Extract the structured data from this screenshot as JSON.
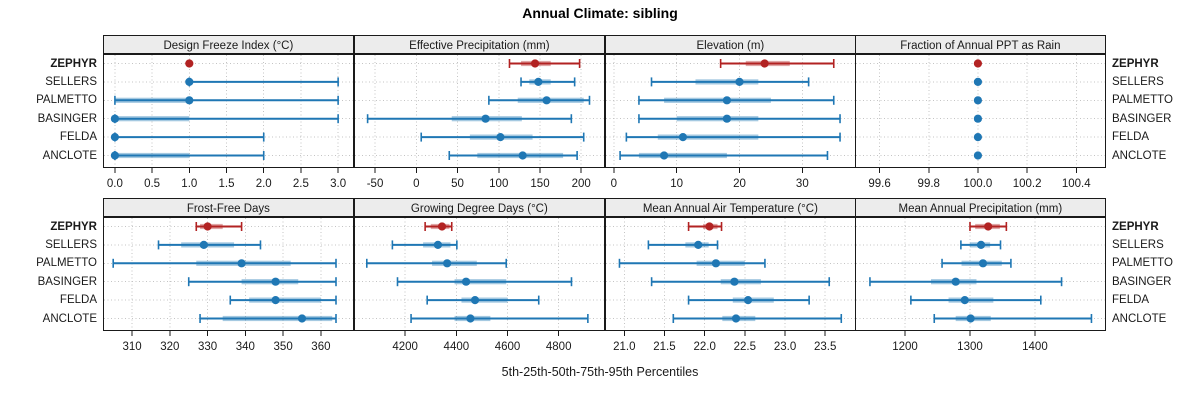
{
  "title": "Annual Climate: sibling",
  "xlabel": "5th-25th-50th-75th-95th Percentiles",
  "colors": {
    "highlight_red": "#b22222",
    "series_blue": "#1f77b4",
    "strip_bg": "#ececec",
    "panel_border": "#1a1a1a",
    "grid": "#c4c4c4"
  },
  "stations": [
    {
      "name": "ZEPHYR",
      "bold": true,
      "color": "#b22222"
    },
    {
      "name": "SELLERS",
      "bold": false,
      "color": "#1f77b4"
    },
    {
      "name": "PALMETTO",
      "bold": false,
      "color": "#1f77b4"
    },
    {
      "name": "BASINGER",
      "bold": false,
      "color": "#1f77b4"
    },
    {
      "name": "FELDA",
      "bold": false,
      "color": "#1f77b4"
    },
    {
      "name": "ANCLOTE",
      "bold": false,
      "color": "#1f77b4"
    }
  ],
  "chart_data": {
    "type": "dotplot-percentiles",
    "title": "Annual Climate: sibling",
    "xlabel": "5th-25th-50th-75th-95th Percentiles",
    "percentile_labels": [
      "5th",
      "25th",
      "50th",
      "75th",
      "95th"
    ],
    "station_order": [
      "ZEPHYR",
      "SELLERS",
      "PALMETTO",
      "BASINGER",
      "FELDA",
      "ANCLOTE"
    ],
    "grid": true,
    "layout": "2 rows x 4 columns",
    "panels": [
      {
        "title": "Design Freeze Index (°C)",
        "xlim": [
          -0.16,
          3.21
        ],
        "tick_values": [
          0.0,
          0.5,
          1.0,
          1.5,
          2.0,
          2.5,
          3.0
        ],
        "tick_labels": [
          "0.0",
          "0.5",
          "1.0",
          "1.5",
          "2.0",
          "2.5",
          "3.0"
        ],
        "values": [
          [
            1,
            1,
            1,
            1,
            1
          ],
          [
            1,
            1,
            1,
            1,
            3
          ],
          [
            0,
            0,
            1,
            1,
            3
          ],
          [
            0,
            0,
            0,
            1,
            3
          ],
          [
            0,
            0,
            0,
            0,
            2
          ],
          [
            0,
            0,
            0,
            1,
            2
          ]
        ]
      },
      {
        "title": "Effective Precipitation (mm)",
        "xlim": [
          -75.5,
          228.5
        ],
        "tick_values": [
          -50,
          0,
          50,
          100,
          150,
          200
        ],
        "tick_labels": [
          "-50",
          "0",
          "50",
          "100",
          "150",
          "200"
        ],
        "values": [
          [
            113,
            127,
            144,
            163,
            198
          ],
          [
            127,
            137,
            148,
            163,
            192
          ],
          [
            88,
            123,
            158,
            203,
            210
          ],
          [
            -59,
            43,
            84,
            128,
            188
          ],
          [
            6,
            65,
            102,
            141,
            203
          ],
          [
            40,
            74,
            129,
            178,
            195
          ]
        ]
      },
      {
        "title": "Elevation (m)",
        "xlim": [
          -1.4,
          38.5
        ],
        "tick_values": [
          0,
          10,
          20,
          30
        ],
        "tick_labels": [
          "0",
          "10",
          "20",
          "30"
        ],
        "values": [
          [
            17,
            21,
            24,
            28,
            35
          ],
          [
            6,
            13,
            20,
            23,
            31
          ],
          [
            4,
            8,
            18,
            25,
            35
          ],
          [
            4,
            10,
            18,
            23,
            36
          ],
          [
            2,
            7,
            11,
            23,
            36
          ],
          [
            1,
            4,
            8,
            18,
            34
          ]
        ]
      },
      {
        "title": "Fraction of Annual PPT as Rain",
        "xlim": [
          99.5,
          100.52
        ],
        "tick_values": [
          99.6,
          99.8,
          100.0,
          100.2,
          100.4
        ],
        "tick_labels": [
          "99.6",
          "99.8",
          "100.0",
          "100.2",
          "100.4"
        ],
        "values": [
          [
            100,
            100,
            100,
            100,
            100
          ],
          [
            100,
            100,
            100,
            100,
            100
          ],
          [
            100,
            100,
            100,
            100,
            100
          ],
          [
            100,
            100,
            100,
            100,
            100
          ],
          [
            100,
            100,
            100,
            100,
            100
          ],
          [
            100,
            100,
            100,
            100,
            100
          ]
        ]
      },
      {
        "title": "Frost-Free Days",
        "xlim": [
          302.3,
          368.7
        ],
        "tick_values": [
          310,
          320,
          330,
          340,
          350,
          360
        ],
        "tick_labels": [
          "310",
          "320",
          "330",
          "340",
          "350",
          "360"
        ],
        "values": [
          [
            327,
            328,
            330,
            334,
            339
          ],
          [
            317,
            323,
            329,
            337,
            344
          ],
          [
            305,
            327,
            339,
            352,
            364
          ],
          [
            325,
            339,
            348,
            354,
            364
          ],
          [
            336,
            341,
            348,
            360,
            364
          ],
          [
            328,
            334,
            355,
            363,
            364
          ]
        ]
      },
      {
        "title": "Growing Degree Days (°C)",
        "xlim": [
          4000,
          4980
        ],
        "tick_values": [
          4200,
          4400,
          4600,
          4800
        ],
        "tick_labels": [
          "4200",
          "4400",
          "4600",
          "4800"
        ],
        "values": [
          [
            4278,
            4300,
            4344,
            4373,
            4382
          ],
          [
            4150,
            4270,
            4328,
            4377,
            4402
          ],
          [
            4050,
            4305,
            4364,
            4480,
            4595
          ],
          [
            4170,
            4393,
            4438,
            4595,
            4850
          ],
          [
            4286,
            4420,
            4473,
            4600,
            4722
          ],
          [
            4223,
            4393,
            4455,
            4533,
            4914
          ]
        ]
      },
      {
        "title": "Mean Annual Air Temperature (°C)",
        "xlim": [
          20.76,
          23.88
        ],
        "tick_values": [
          21.0,
          21.5,
          22.0,
          22.5,
          23.0,
          23.5
        ],
        "tick_labels": [
          "21.0",
          "21.5",
          "22.0",
          "22.5",
          "23.0",
          "23.5"
        ],
        "values": [
          [
            21.8,
            21.98,
            22.06,
            22.16,
            22.21
          ],
          [
            21.3,
            21.76,
            21.92,
            22.05,
            22.16
          ],
          [
            20.94,
            21.9,
            22.14,
            22.5,
            22.75
          ],
          [
            21.34,
            22.2,
            22.37,
            22.7,
            23.55
          ],
          [
            21.8,
            22.35,
            22.54,
            22.86,
            23.3
          ],
          [
            21.61,
            22.22,
            22.39,
            22.63,
            23.7
          ]
        ]
      },
      {
        "title": "Mean Annual Precipitation (mm)",
        "xlim": [
          1123,
          1509
        ],
        "tick_values": [
          1200,
          1300,
          1400
        ],
        "tick_labels": [
          "1200",
          "1300",
          "1400"
        ],
        "values": [
          [
            1300,
            1308,
            1328,
            1346,
            1356
          ],
          [
            1286,
            1300,
            1317,
            1331,
            1347
          ],
          [
            1257,
            1287,
            1320,
            1349,
            1363
          ],
          [
            1146,
            1240,
            1278,
            1310,
            1441
          ],
          [
            1209,
            1267,
            1292,
            1336,
            1409
          ],
          [
            1245,
            1278,
            1301,
            1332,
            1487
          ]
        ]
      }
    ]
  }
}
